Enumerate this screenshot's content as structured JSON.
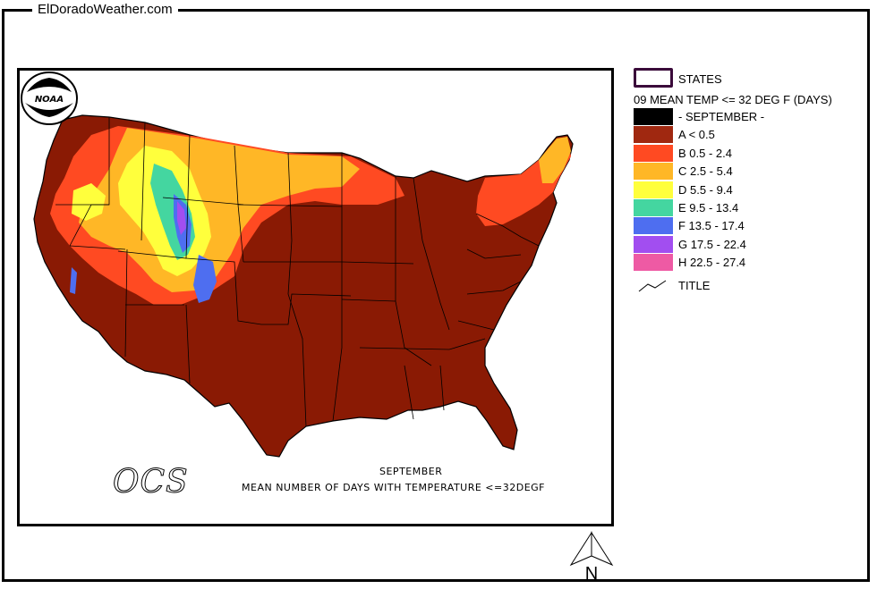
{
  "site": {
    "title": "ElDoradoWeather.com"
  },
  "map": {
    "caption_month": "SEPTEMBER",
    "caption_description": "MEAN NUMBER OF DAYS WITH TEMPERATURE <=32DEGF",
    "logo_text": "NOAA",
    "ocs_text": "OCS",
    "north_label": "N"
  },
  "legend": {
    "states_label": "STATES",
    "title": "09 MEAN TEMP <= 32 DEG F (DAYS)",
    "items": [
      {
        "label": "- SEPTEMBER -",
        "color": "#000000"
      },
      {
        "label": "A < 0.5",
        "color": "#a02810"
      },
      {
        "label": "B 0.5 - 2.4",
        "color": "#ff4a22"
      },
      {
        "label": "C 2.5 - 5.4",
        "color": "#ffb726"
      },
      {
        "label": "D 5.5 - 9.4",
        "color": "#ffff3c"
      },
      {
        "label": "E 9.5 - 13.4",
        "color": "#44d6a0"
      },
      {
        "label": "F 13.5 - 17.4",
        "color": "#4e6ef0"
      },
      {
        "label": "G 17.5 - 22.4",
        "color": "#a24ef0"
      },
      {
        "label": "H 22.5 - 27.4",
        "color": "#ee5aa4"
      }
    ],
    "title_item_label": "TITLE"
  },
  "colors": {
    "base_land": "#8a1a04",
    "states_outline": "#3a0a3a"
  }
}
